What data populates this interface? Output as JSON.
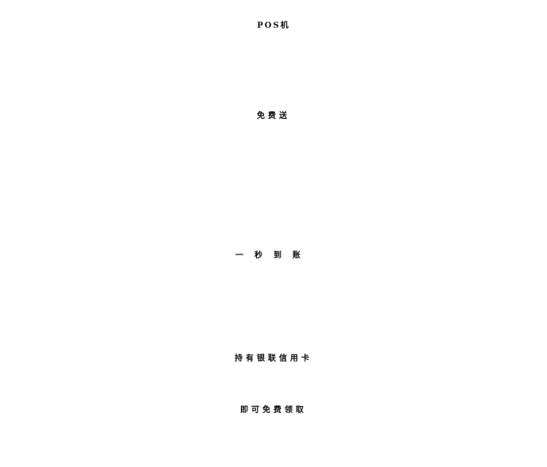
{
  "poster": {
    "line1": "POS机",
    "line2": "免费送",
    "line3": "一秒到账",
    "line4": "持有银联信用卡",
    "line5": "即可免费领取"
  },
  "colors": {
    "background": "#ffffff",
    "text": "#111111"
  }
}
